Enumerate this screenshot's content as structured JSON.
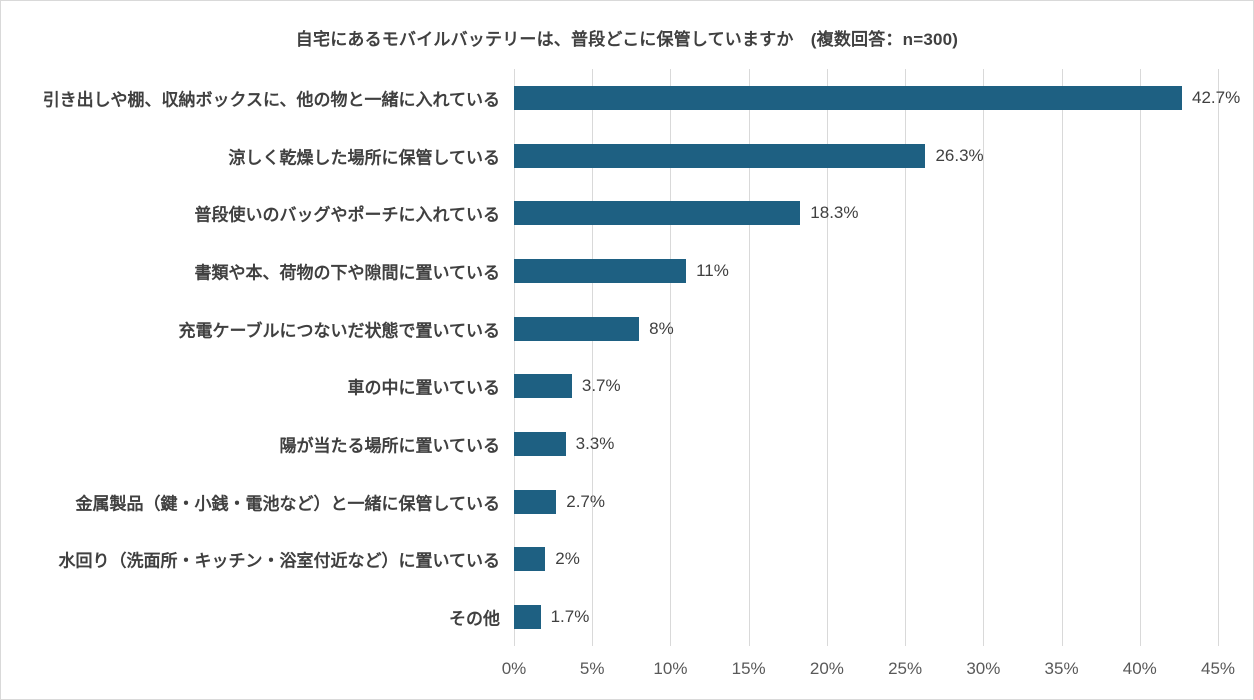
{
  "chart": {
    "title": "自宅にあるモバイルバッテリーは、普段どこに保管していますか　(複数回答：n=300)"
  },
  "chart_data": {
    "type": "bar",
    "orientation": "horizontal",
    "title": "自宅にあるモバイルバッテリーは、普段どこに保管していますか　(複数回答：n=300)",
    "categories": [
      "引き出しや棚、収納ボックスに、他の物と一緒に入れている",
      "涼しく乾燥した場所に保管している",
      "普段使いのバッグやポーチに入れている",
      "書類や本、荷物の下や隙間に置いている",
      "充電ケーブルにつないだ状態で置いている",
      "車の中に置いている",
      "陽が当たる場所に置いている",
      "金属製品（鍵・小銭・電池など）と一緒に保管している",
      "水回り（洗面所・キッチン・浴室付近など）に置いている",
      "その他"
    ],
    "values": [
      42.7,
      26.3,
      18.3,
      11,
      8,
      3.7,
      3.3,
      2.7,
      2,
      1.7
    ],
    "value_labels": [
      "42.7%",
      "26.3%",
      "18.3%",
      "11%",
      "8%",
      "3.7%",
      "3.3%",
      "2.7%",
      "2%",
      "1.7%"
    ],
    "x_ticks": [
      "0%",
      "5%",
      "10%",
      "15%",
      "20%",
      "25%",
      "30%",
      "35%",
      "40%",
      "45%"
    ],
    "xlim": [
      0,
      45
    ],
    "xlabel": "",
    "ylabel": "",
    "grid": true,
    "legend_position": "none",
    "bar_color": "#1e6082",
    "grid_color": "#d9d9d9",
    "label_color": "#404040",
    "tick_color": "#595959"
  }
}
